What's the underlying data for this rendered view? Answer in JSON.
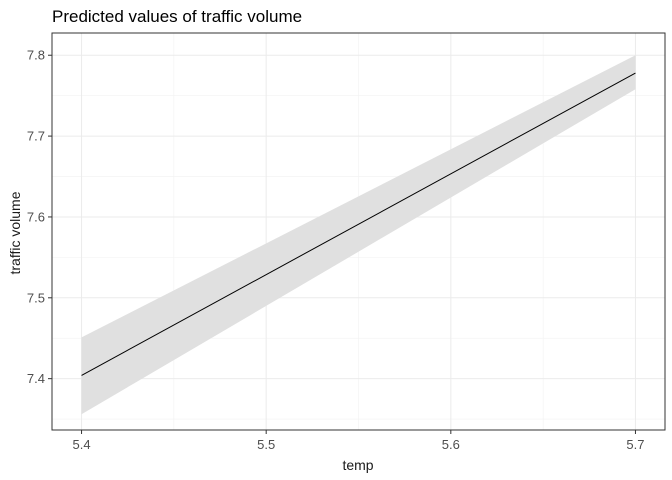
{
  "chart_data": {
    "type": "line",
    "title": "Predicted values of traffic volume",
    "xlabel": "temp",
    "ylabel": "traffic volume",
    "xlim": [
      5.384,
      5.716
    ],
    "ylim": [
      7.3365,
      7.8275
    ],
    "x_ticks": [
      "5.4",
      "5.5",
      "5.6",
      "5.7"
    ],
    "y_ticks": [
      "7.4",
      "7.5",
      "7.6",
      "7.7",
      "7.8"
    ],
    "grid": true,
    "legend": "none",
    "series": [
      {
        "x": [
          5.4,
          5.7
        ],
        "y": [
          7.404,
          7.778
        ],
        "ci_lower": [
          7.356,
          7.758
        ],
        "ci_upper": [
          7.451,
          7.8
        ],
        "line_color": "#000000",
        "ribbon_color": "#e0e0e0"
      }
    ]
  }
}
